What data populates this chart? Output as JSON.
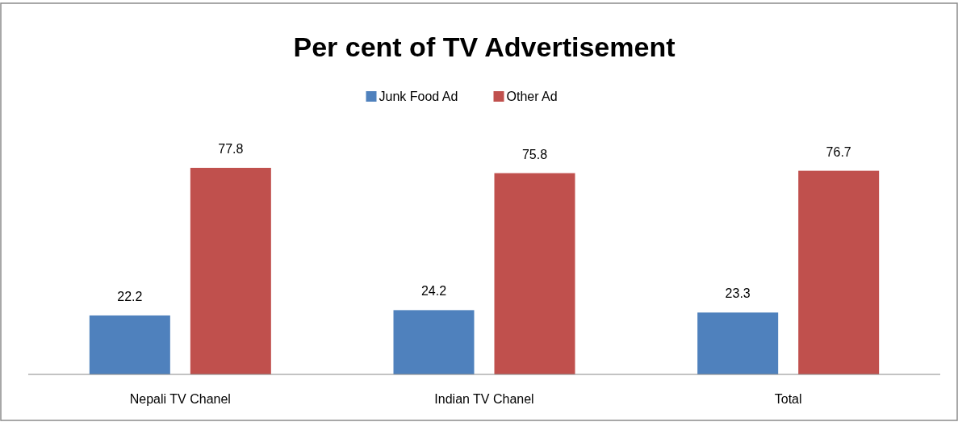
{
  "chart_data": {
    "type": "bar",
    "title": "Per cent of TV Advertisement",
    "categories": [
      "Nepali TV Chanel",
      "Indian TV Chanel",
      "Total"
    ],
    "series": [
      {
        "name": "Junk Food Ad",
        "color": "#4f81bd",
        "values": [
          22.2,
          24.2,
          23.3
        ]
      },
      {
        "name": "Other Ad",
        "color": "#c0504d",
        "values": [
          77.8,
          75.8,
          76.7
        ]
      }
    ],
    "data_labels": true,
    "legend": "top"
  }
}
